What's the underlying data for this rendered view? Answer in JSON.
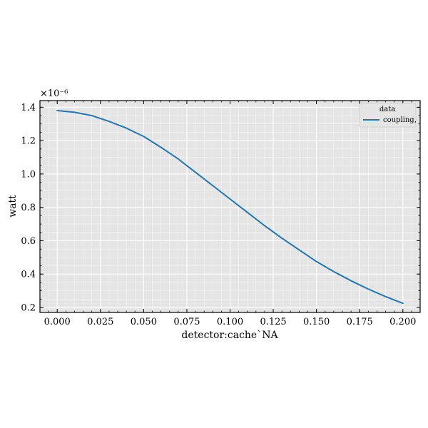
{
  "chart_data": {
    "type": "line",
    "title": "",
    "xlabel": "detector:cache`NA",
    "ylabel": "watt",
    "y_multiplier": "×10⁻⁶",
    "xlim": [
      -0.01,
      0.21
    ],
    "ylim": [
      0.17,
      1.44
    ],
    "x_ticks": [
      0.0,
      0.025,
      0.05,
      0.075,
      0.1,
      0.125,
      0.15,
      0.175,
      0.2
    ],
    "x_tick_labels": [
      "0.000",
      "0.025",
      "0.050",
      "0.075",
      "0.100",
      "0.125",
      "0.150",
      "0.175",
      "0.200"
    ],
    "y_ticks": [
      0.2,
      0.4,
      0.6,
      0.8,
      1.0,
      1.2,
      1.4
    ],
    "y_tick_labels": [
      "0.2",
      "0.4",
      "0.6",
      "0.8",
      "1.0",
      "1.2",
      "1.4"
    ],
    "grid": true,
    "background": "#e5e5e5",
    "legend": {
      "title": "data",
      "placement": "top-right"
    },
    "series": [
      {
        "name": "coupling,",
        "color": "#1f77b4",
        "x": [
          0.0,
          0.01,
          0.02,
          0.03,
          0.04,
          0.05,
          0.06,
          0.07,
          0.08,
          0.09,
          0.1,
          0.11,
          0.12,
          0.13,
          0.14,
          0.15,
          0.16,
          0.17,
          0.18,
          0.19,
          0.2
        ],
        "y": [
          1.38,
          1.37,
          1.35,
          1.315,
          1.275,
          1.225,
          1.16,
          1.09,
          1.01,
          0.93,
          0.85,
          0.77,
          0.69,
          0.615,
          0.545,
          0.475,
          0.415,
          0.36,
          0.31,
          0.265,
          0.225
        ]
      }
    ]
  }
}
